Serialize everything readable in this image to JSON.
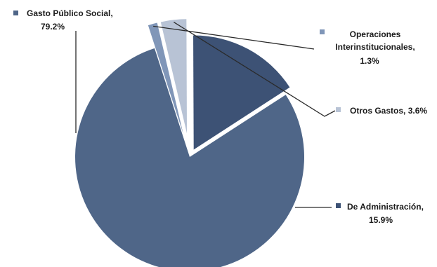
{
  "chart_data": {
    "type": "pie",
    "slices": [
      {
        "label": "Gasto Público Social,",
        "percent_text": "79.2%",
        "value": 79.2,
        "color": "#4f6688"
      },
      {
        "label": "Operaciones Interinstitucionales,",
        "percent_text": "1.3%",
        "value": 1.3,
        "color": "#8096b8"
      },
      {
        "label": "Otros Gastos, 3.6%",
        "percent_text": "",
        "value": 3.6,
        "color": "#b8c3d5"
      },
      {
        "label": "De Administración,",
        "percent_text": "15.9%",
        "value": 15.9,
        "color": "#3d5275"
      }
    ],
    "legend": "labels-with-leader-lines"
  }
}
